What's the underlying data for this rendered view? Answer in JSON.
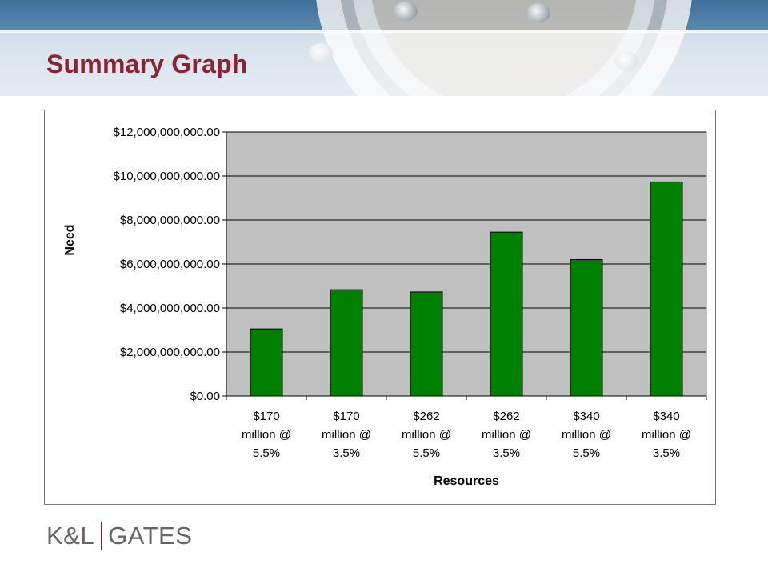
{
  "slide": {
    "title": "Summary Graph",
    "logo": {
      "left": "K&L",
      "right": "GATES",
      "accent_color": "#8b2332"
    }
  },
  "colors": {
    "title": "#8b2332",
    "bar": "#008000",
    "plot_bg": "#c0c0c0"
  },
  "chart_data": {
    "type": "bar",
    "title": "",
    "xlabel": "Resources",
    "ylabel": "Need",
    "categories": [
      [
        "$170",
        "million @",
        "5.5%"
      ],
      [
        "$170",
        "million @",
        "3.5%"
      ],
      [
        "$262",
        "million @",
        "5.5%"
      ],
      [
        "$262",
        "million @",
        "3.5%"
      ],
      [
        "$340",
        "million @",
        "5.5%"
      ],
      [
        "$340",
        "million @",
        "3.5%"
      ]
    ],
    "values": [
      3050000000,
      4830000000,
      4730000000,
      7450000000,
      6200000000,
      9730000000
    ],
    "ylim": [
      0,
      12000000000
    ],
    "yticks": [
      0,
      2000000000,
      4000000000,
      6000000000,
      8000000000,
      10000000000,
      12000000000
    ],
    "ytick_labels": [
      "$0.00",
      "$2,000,000,000.00",
      "$4,000,000,000.00",
      "$6,000,000,000.00",
      "$8,000,000,000.00",
      "$10,000,000,000.00",
      "$12,000,000,000.00"
    ],
    "grid": true,
    "legend": "none"
  }
}
